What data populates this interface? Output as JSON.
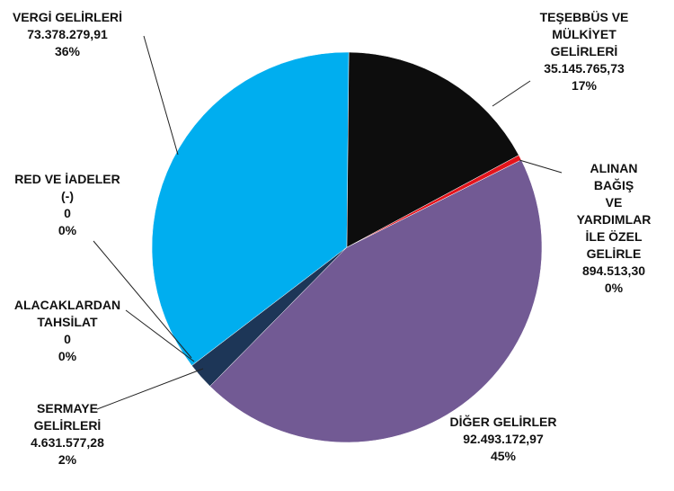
{
  "chart_data": {
    "type": "pie",
    "categories": [
      "TEŞEBBÜS VE\nMÜLKİYET\nGELİRLERİ",
      "ALINAN BAĞIŞ\nVE YARDIMLAR\nİLE ÖZEL GELİRLE",
      "DİĞER GELİRLER",
      "SERMAYE\nGELİRLERİ",
      "ALACAKLARDAN\nTAHSİLAT",
      "RED VE İADELER\n(-)",
      "VERGİ GELİRLERİ"
    ],
    "values": [
      35145765.73,
      894513.3,
      92493172.97,
      4631577.28,
      0,
      0,
      73378279.91
    ],
    "value_labels": [
      "35.145.765,73",
      "894.513,30",
      "92.493.172,97",
      "4.631.577,28",
      "0",
      "0",
      "73.378.279,91"
    ],
    "percent_labels": [
      "17%",
      "0%",
      "45%",
      "2%",
      "0%",
      "0%",
      "36%"
    ],
    "colors": [
      "#0d0d0d",
      "#e3141c",
      "#725a94",
      "#1d3657",
      "#8a8a8a",
      "#a0a0a0",
      "#00aeef"
    ]
  }
}
